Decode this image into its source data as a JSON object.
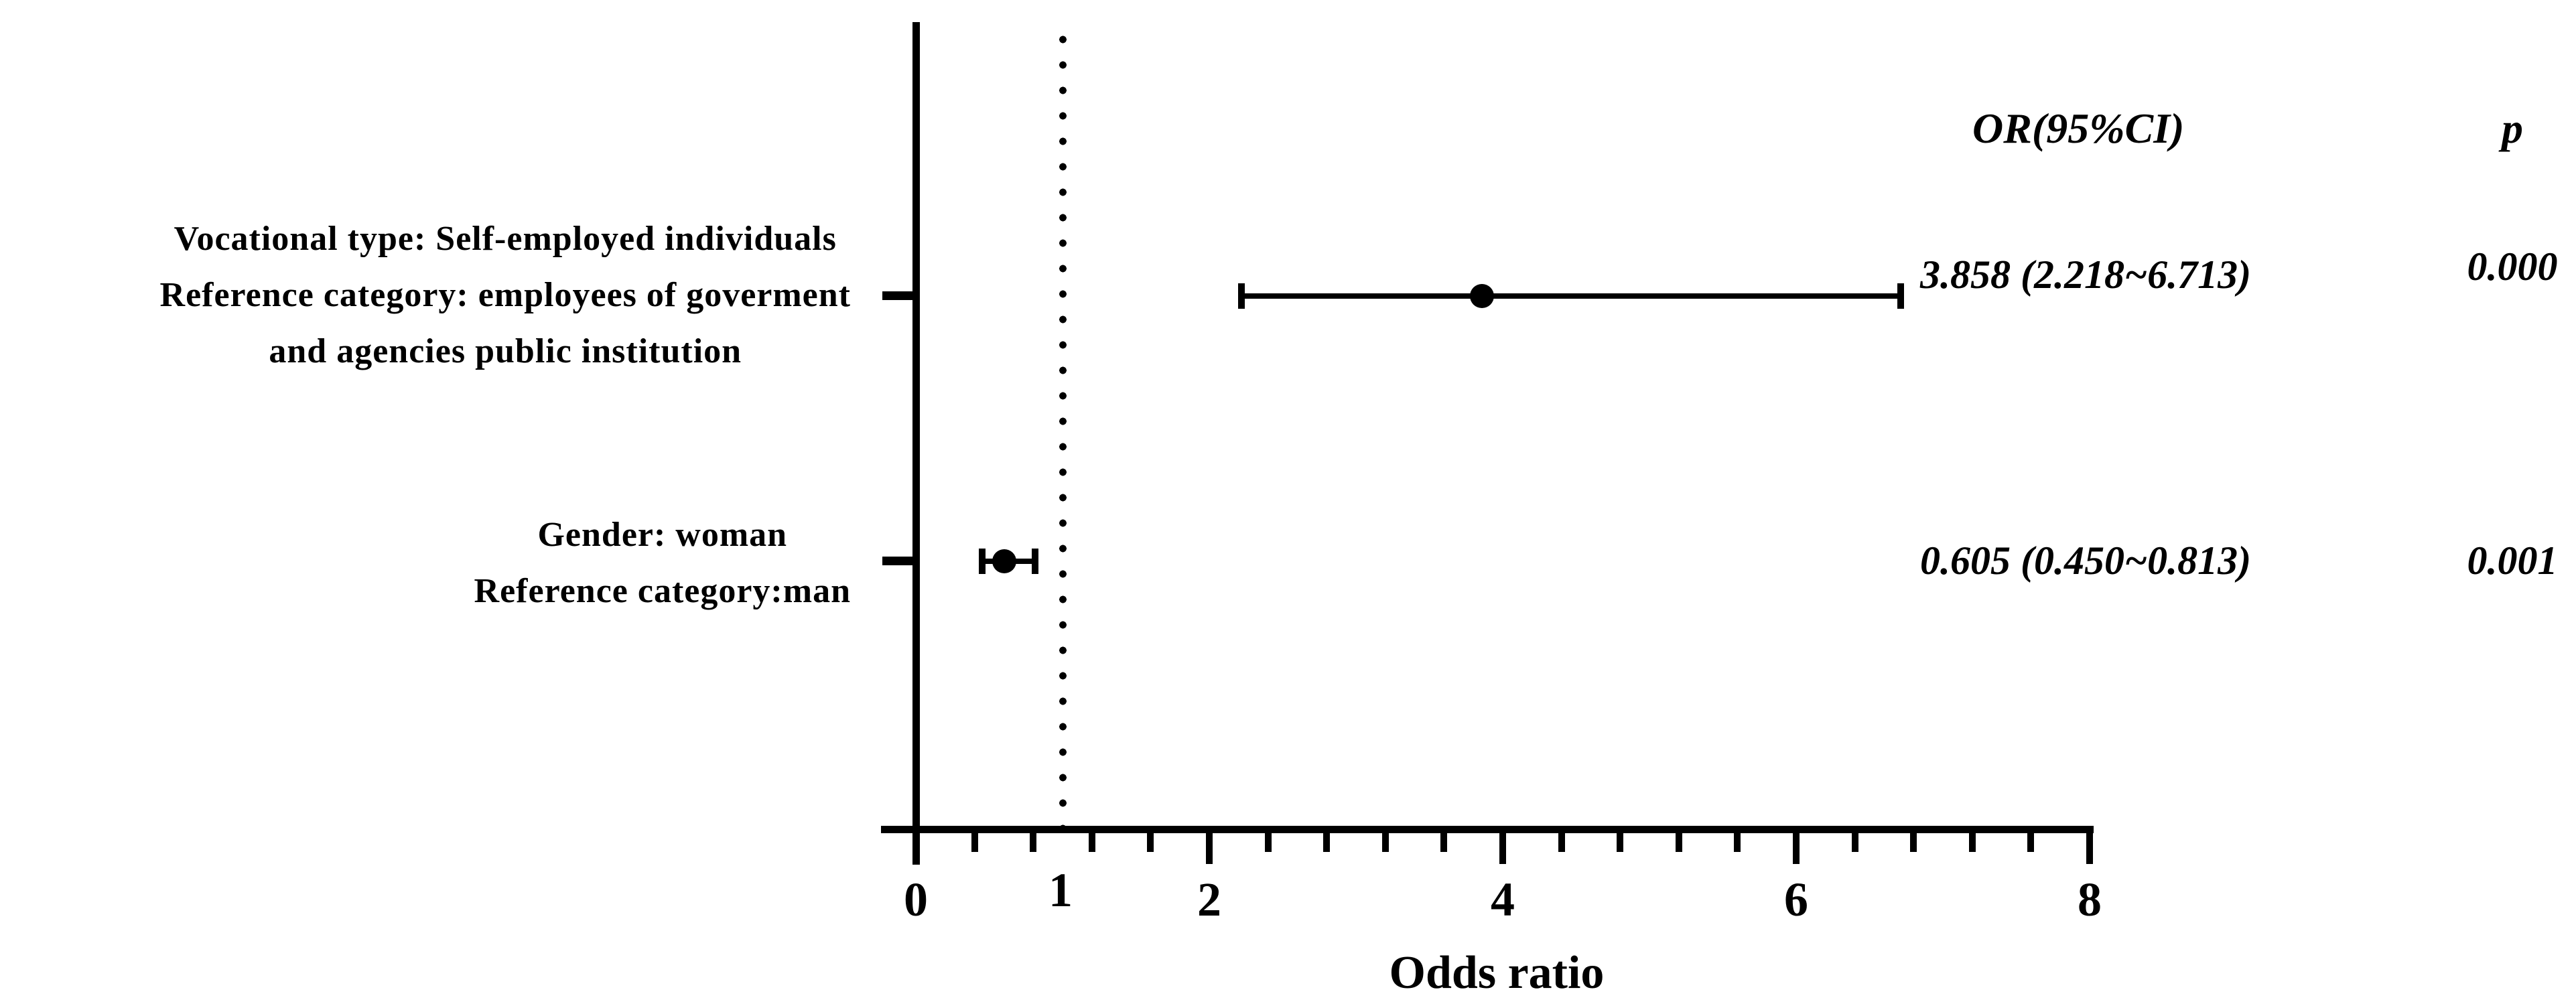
{
  "chart_data": {
    "type": "scatter",
    "subtype": "forest_plot",
    "title": "",
    "xlabel": "Odds ratio",
    "ylabel": "",
    "xlim": [
      0,
      8
    ],
    "x_major_ticks": [
      0,
      2,
      4,
      6,
      8
    ],
    "x_minor_tick_step": 0.4,
    "x_tick_labels": [
      {
        "value": 0,
        "label": "0"
      },
      {
        "value": 1,
        "label": "1"
      },
      {
        "value": 2,
        "label": "2"
      },
      {
        "value": 4,
        "label": "4"
      },
      {
        "value": 6,
        "label": "6"
      },
      {
        "value": 8,
        "label": "8"
      }
    ],
    "reference_line_x": 1,
    "grid": false,
    "legend": false,
    "column_headers": {
      "or": "OR(95%CI)",
      "p": "p"
    },
    "rows": [
      {
        "label_lines": [
          "Vocational type: Self-employed individuals",
          "Reference category: employees of goverment",
          "and agencies public institution"
        ],
        "or": 3.858,
        "ci_low": 2.218,
        "ci_high": 6.713,
        "or_ci_text": "3.858 (2.218~6.713)",
        "p_text": "0.000"
      },
      {
        "label_lines": [
          "Gender: woman",
          "Reference category:man"
        ],
        "or": 0.605,
        "ci_low": 0.45,
        "ci_high": 0.813,
        "or_ci_text": "0.605 (0.450~0.813)",
        "p_text": "0.001"
      }
    ]
  },
  "colors": {
    "ink": "#000000",
    "background": "#ffffff"
  }
}
